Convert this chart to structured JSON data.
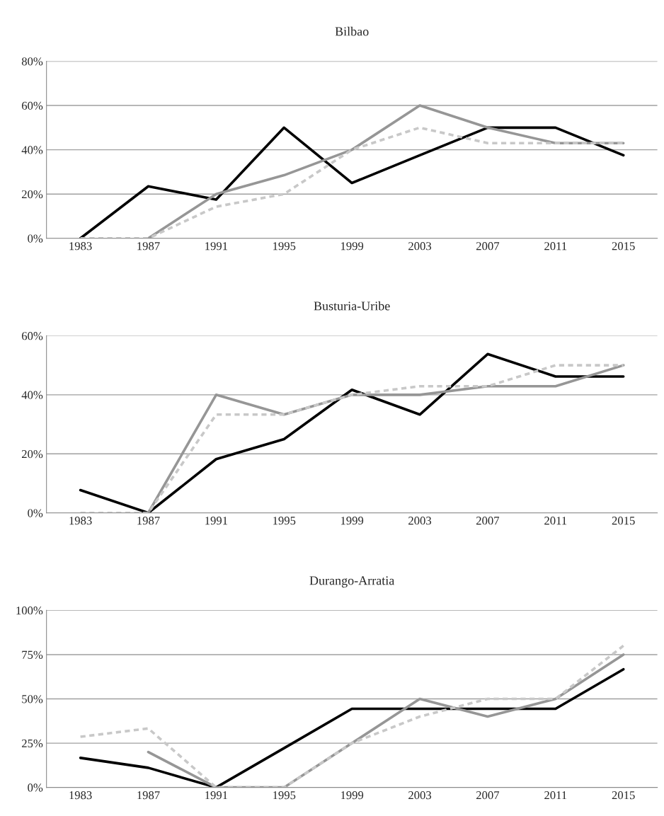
{
  "chart_data": [
    {
      "type": "line",
      "title": "Bilbao",
      "categories": [
        "1983",
        "1987",
        "1991",
        "1995",
        "1999",
        "2003",
        "2007",
        "2011",
        "2015"
      ],
      "ylim": [
        0,
        80
      ],
      "yticks": [
        {
          "value": 0,
          "label": "0%"
        },
        {
          "value": 20,
          "label": "20%"
        },
        {
          "value": 40,
          "label": "40%"
        },
        {
          "value": 60,
          "label": "60%"
        },
        {
          "value": 80,
          "label": "80%"
        }
      ],
      "grid": "y",
      "legend": false,
      "series": [
        {
          "color": "#000000",
          "line_style": "solid",
          "values": [
            0,
            23.5,
            17.5,
            50,
            25,
            37.5,
            50,
            50,
            37.5
          ]
        },
        {
          "color": "#969696",
          "line_style": "solid",
          "values": [
            null,
            0,
            20,
            28.5,
            40,
            60,
            50,
            43,
            43
          ]
        },
        {
          "color": "#c8c8c8",
          "line_style": "dotted",
          "values": [
            0,
            0,
            14.3,
            20,
            40,
            50,
            43,
            43,
            43
          ]
        }
      ]
    },
    {
      "type": "line",
      "title": "Busturia-Uribe",
      "categories": [
        "1983",
        "1987",
        "1991",
        "1995",
        "1999",
        "2003",
        "2007",
        "2011",
        "2015"
      ],
      "ylim": [
        0,
        60
      ],
      "yticks": [
        {
          "value": 0,
          "label": "0%"
        },
        {
          "value": 20,
          "label": "20%"
        },
        {
          "value": 40,
          "label": "40%"
        },
        {
          "value": 60,
          "label": "60%"
        }
      ],
      "grid": "y",
      "legend": false,
      "series": [
        {
          "color": "#000000",
          "line_style": "solid",
          "values": [
            7.7,
            0,
            18.2,
            25,
            41.7,
            33.3,
            53.8,
            46.2,
            46.2
          ]
        },
        {
          "color": "#969696",
          "line_style": "solid",
          "values": [
            null,
            0,
            40,
            33.3,
            40,
            40,
            42.9,
            42.9,
            50
          ]
        },
        {
          "color": "#c8c8c8",
          "line_style": "dotted",
          "values": [
            0,
            0,
            33.3,
            33.3,
            40,
            42.9,
            42.9,
            50,
            50
          ]
        }
      ]
    },
    {
      "type": "line",
      "title": "Durango-Arratia",
      "categories": [
        "1983",
        "1987",
        "1991",
        "1995",
        "1999",
        "2003",
        "2007",
        "2011",
        "2015"
      ],
      "ylim": [
        0,
        100
      ],
      "yticks": [
        {
          "value": 0,
          "label": "0%"
        },
        {
          "value": 25,
          "label": "25%"
        },
        {
          "value": 50,
          "label": "50%"
        },
        {
          "value": 75,
          "label": "75%"
        },
        {
          "value": 100,
          "label": "100%"
        }
      ],
      "grid": "y",
      "legend": false,
      "series": [
        {
          "color": "#000000",
          "line_style": "solid",
          "values": [
            16.7,
            11.1,
            0,
            22.2,
            44.4,
            44.4,
            44.4,
            44.4,
            66.7
          ]
        },
        {
          "color": "#969696",
          "line_style": "solid",
          "values": [
            null,
            20,
            0,
            0,
            25,
            50,
            40,
            50,
            75
          ]
        },
        {
          "color": "#c8c8c8",
          "line_style": "dotted",
          "values": [
            28.6,
            33.3,
            0,
            0,
            25,
            40,
            50,
            50,
            80
          ]
        }
      ]
    }
  ]
}
